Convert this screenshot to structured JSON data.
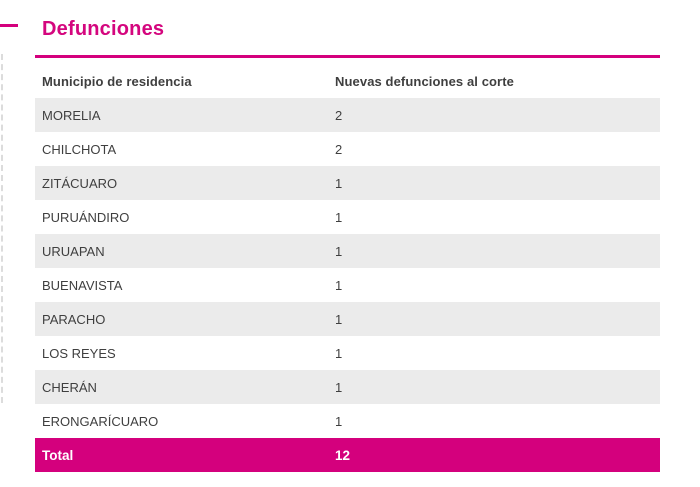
{
  "page": {
    "title": "Defunciones"
  },
  "colors": {
    "accent_pink": "#d4007d",
    "title_pink": "#d4067e",
    "stripe_gray": "#ebebeb",
    "header_text_gray": "#7a7a7a",
    "cell_text_gray": "#3f3f3f",
    "total_text": "#ffffff"
  },
  "table": {
    "columns": [
      {
        "label": "Municipio de residencia"
      },
      {
        "label": "Nuevas defunciones al corte"
      }
    ],
    "rows": [
      {
        "municipio": "MORELIA",
        "nuevas_defunciones": "2"
      },
      {
        "municipio": "CHILCHOTA",
        "nuevas_defunciones": "2"
      },
      {
        "municipio": "ZITÁCUARO",
        "nuevas_defunciones": "1"
      },
      {
        "municipio": "PURUÁNDIRO",
        "nuevas_defunciones": "1"
      },
      {
        "municipio": "URUAPAN",
        "nuevas_defunciones": "1"
      },
      {
        "municipio": "BUENAVISTA",
        "nuevas_defunciones": "1"
      },
      {
        "municipio": "PARACHO",
        "nuevas_defunciones": "1"
      },
      {
        "municipio": "LOS REYES",
        "nuevas_defunciones": "1"
      },
      {
        "municipio": "CHERÁN",
        "nuevas_defunciones": "1"
      },
      {
        "municipio": "ERONGARÍCUARO",
        "nuevas_defunciones": "1"
      }
    ],
    "total": {
      "label": "Total",
      "value": "12"
    }
  },
  "chart_data": {
    "type": "table",
    "title": "Defunciones",
    "columns": [
      "Municipio de residencia",
      "Nuevas defunciones al corte"
    ],
    "rows": [
      [
        "MORELIA",
        2
      ],
      [
        "CHILCHOTA",
        2
      ],
      [
        "ZITÁCUARO",
        1
      ],
      [
        "PURUÁNDIRO",
        1
      ],
      [
        "URUAPAN",
        1
      ],
      [
        "BUENAVISTA",
        1
      ],
      [
        "PARACHO",
        1
      ],
      [
        "LOS REYES",
        1
      ],
      [
        "CHERÁN",
        1
      ],
      [
        "ERONGARÍCUARO",
        1
      ]
    ],
    "total_row": [
      "Total",
      12
    ],
    "layout": {
      "striping": "alternate rows starting gray",
      "total_row_style": "magenta background, white bold text"
    }
  }
}
